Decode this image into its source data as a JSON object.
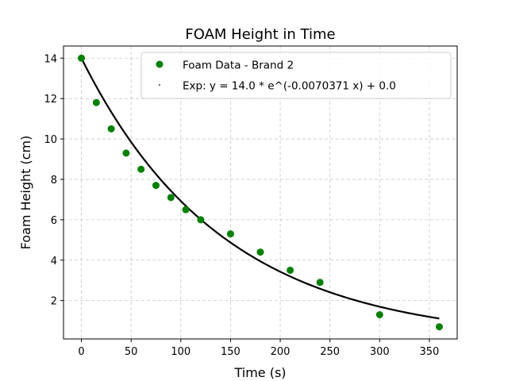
{
  "chart_data": {
    "type": "scatter",
    "title": "FOAM Height in Time",
    "xlabel": "Time (s)",
    "ylabel": "Foam Height (cm)",
    "xlim": [
      -18,
      378
    ],
    "ylim": [
      0.1,
      14.6
    ],
    "xticks": [
      0,
      50,
      100,
      150,
      200,
      250,
      300,
      350
    ],
    "yticks": [
      2,
      4,
      6,
      8,
      10,
      12,
      14
    ],
    "grid": true,
    "legend_position": "top-right",
    "series": [
      {
        "name": "Foam Data - Brand 2",
        "kind": "scatter",
        "color": "#008000",
        "x": [
          0,
          15,
          30,
          45,
          60,
          75,
          90,
          105,
          120,
          150,
          180,
          210,
          240,
          300,
          360
        ],
        "y": [
          14.0,
          11.8,
          10.5,
          9.3,
          8.5,
          7.7,
          7.1,
          6.5,
          6.0,
          5.3,
          4.4,
          3.5,
          2.9,
          1.3,
          0.7
        ]
      },
      {
        "name": "Exp: y = 14.0 * e^(-0.0070371 x) + 0.0",
        "kind": "fit",
        "color": "#000000",
        "a": 14.0,
        "b": -0.0070371,
        "c": 0.0,
        "x_range": [
          0,
          360
        ]
      }
    ]
  }
}
